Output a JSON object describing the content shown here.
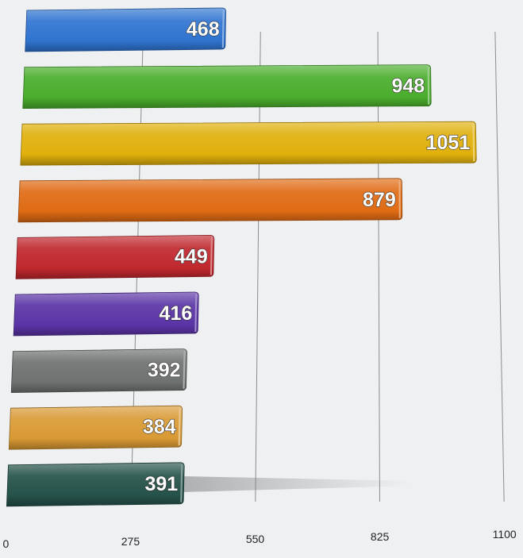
{
  "chart_data": {
    "type": "bar",
    "orientation": "horizontal",
    "style": "3d",
    "title": "",
    "xlabel": "",
    "ylabel": "",
    "xlim": [
      0,
      1100
    ],
    "x_ticks": [
      0,
      275,
      550,
      825,
      1100
    ],
    "x_tick_labels": [
      "0",
      "275",
      "550",
      "825",
      "1100"
    ],
    "grid": "vertical",
    "legend": "none",
    "data_labels": true,
    "values": [
      468,
      948,
      1051,
      879,
      449,
      416,
      392,
      384,
      391
    ],
    "colors": [
      "#2f74d0",
      "#4aad2c",
      "#e0b00c",
      "#e06b14",
      "#c0282e",
      "#5a34a6",
      "#6e7270",
      "#d99a34",
      "#25524a"
    ]
  }
}
